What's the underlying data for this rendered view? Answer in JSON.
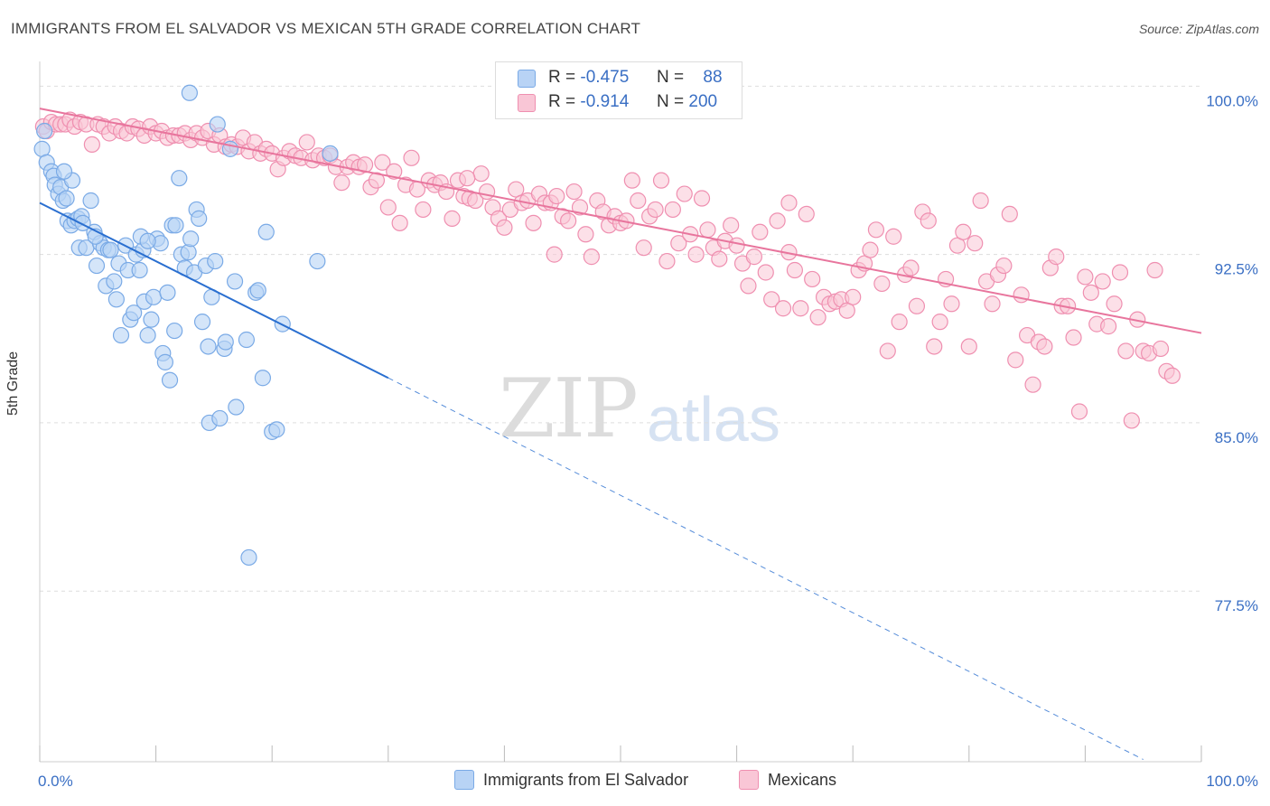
{
  "header": {
    "title": "IMMIGRANTS FROM EL SALVADOR VS MEXICAN 5TH GRADE CORRELATION CHART",
    "source": "Source: ZipAtlas.com"
  },
  "watermark": {
    "zip": "ZIP",
    "atlas": "atlas"
  },
  "legend": {
    "rows": [
      {
        "r_label": "R =",
        "r_value": "-0.475",
        "n_label": "N =",
        "n_value": "88",
        "color": "#6fa8e8"
      },
      {
        "r_label": "R =",
        "r_value": "-0.914",
        "n_label": "N =",
        "n_value": "200",
        "color": "#f4a0bd"
      }
    ]
  },
  "bottom_legend": {
    "items": [
      {
        "label": "Immigrants from El Salvador",
        "color": "#6fa8e8"
      },
      {
        "label": "Mexicans",
        "color": "#f4a0bd"
      }
    ]
  },
  "colors": {
    "blue_fill": "#b8d3f5",
    "blue_stroke": "#7aaae6",
    "blue_line": "#2a6fd0",
    "pink_fill": "#f9c6d6",
    "pink_stroke": "#ef8fb0",
    "pink_line": "#e8759d",
    "tick_label": "#3a6fc4",
    "grid": "#dddddd"
  },
  "chart_data": {
    "type": "scatter",
    "ylabel": "5th Grade",
    "xlabel": "",
    "x_tick_labels": [
      "0.0%",
      "100.0%"
    ],
    "y_tick_labels": [
      "100.0%",
      "92.5%",
      "85.0%",
      "77.5%"
    ],
    "y_ticks": [
      100.0,
      92.5,
      85.0,
      77.5
    ],
    "xlim": [
      0,
      100
    ],
    "ylim": [
      69.9,
      101.1
    ],
    "grid": true,
    "series": [
      {
        "name": "Immigrants from El Salvador",
        "trend": {
          "x": [
            0,
            30
          ],
          "y": [
            94.8,
            87.0
          ],
          "dash_to": [
            95,
            70.0
          ]
        },
        "points": [
          [
            0.2,
            97.2
          ],
          [
            0.4,
            98.0
          ],
          [
            0.6,
            96.6
          ],
          [
            1.0,
            96.2
          ],
          [
            1.2,
            96.0
          ],
          [
            1.3,
            95.6
          ],
          [
            1.6,
            95.2
          ],
          [
            1.8,
            95.5
          ],
          [
            2.0,
            94.9
          ],
          [
            2.3,
            95.0
          ],
          [
            2.8,
            95.8
          ],
          [
            2.4,
            94.0
          ],
          [
            2.7,
            93.8
          ],
          [
            3.0,
            94.0
          ],
          [
            3.3,
            94.1
          ],
          [
            3.6,
            94.2
          ],
          [
            4.4,
            94.9
          ],
          [
            3.4,
            92.8
          ],
          [
            4.0,
            92.8
          ],
          [
            4.7,
            93.5
          ],
          [
            4.9,
            92.0
          ],
          [
            5.2,
            93.0
          ],
          [
            5.5,
            92.8
          ],
          [
            5.7,
            91.1
          ],
          [
            5.9,
            92.7
          ],
          [
            6.1,
            92.7
          ],
          [
            6.4,
            91.3
          ],
          [
            6.8,
            92.1
          ],
          [
            7.0,
            88.9
          ],
          [
            7.4,
            92.9
          ],
          [
            7.6,
            91.8
          ],
          [
            7.8,
            89.6
          ],
          [
            8.1,
            89.9
          ],
          [
            8.3,
            92.5
          ],
          [
            8.6,
            91.8
          ],
          [
            8.9,
            92.7
          ],
          [
            9.0,
            90.4
          ],
          [
            9.3,
            88.9
          ],
          [
            9.6,
            89.6
          ],
          [
            9.8,
            90.6
          ],
          [
            10.1,
            93.2
          ],
          [
            10.4,
            93.0
          ],
          [
            10.6,
            88.1
          ],
          [
            10.8,
            87.7
          ],
          [
            11.0,
            90.8
          ],
          [
            11.2,
            86.9
          ],
          [
            11.4,
            93.8
          ],
          [
            11.7,
            93.8
          ],
          [
            12.0,
            95.9
          ],
          [
            12.2,
            92.5
          ],
          [
            12.5,
            91.9
          ],
          [
            12.8,
            92.6
          ],
          [
            12.9,
            99.7
          ],
          [
            13.0,
            93.2
          ],
          [
            13.3,
            91.7
          ],
          [
            13.5,
            94.5
          ],
          [
            13.7,
            94.1
          ],
          [
            14.0,
            89.5
          ],
          [
            14.3,
            92.0
          ],
          [
            14.6,
            85.0
          ],
          [
            14.8,
            90.6
          ],
          [
            15.1,
            92.2
          ],
          [
            15.3,
            98.3
          ],
          [
            15.5,
            85.2
          ],
          [
            15.9,
            88.3
          ],
          [
            16.0,
            88.6
          ],
          [
            16.4,
            97.2
          ],
          [
            16.8,
            91.3
          ],
          [
            16.9,
            85.7
          ],
          [
            17.8,
            88.7
          ],
          [
            18.6,
            90.8
          ],
          [
            18.8,
            90.9
          ],
          [
            19.2,
            87.0
          ],
          [
            19.5,
            93.5
          ],
          [
            20.0,
            84.6
          ],
          [
            20.4,
            84.7
          ],
          [
            20.9,
            89.4
          ],
          [
            23.9,
            92.2
          ],
          [
            25.0,
            97.0
          ],
          [
            18.0,
            79.0
          ],
          [
            14.5,
            88.4
          ],
          [
            11.6,
            89.1
          ],
          [
            6.6,
            90.5
          ],
          [
            8.7,
            93.3
          ],
          [
            9.3,
            93.1
          ],
          [
            4.8,
            93.3
          ],
          [
            3.7,
            93.9
          ],
          [
            2.1,
            96.2
          ]
        ]
      },
      {
        "name": "Mexicans",
        "trend": {
          "x": [
            0,
            100
          ],
          "y": [
            99.0,
            89.0
          ]
        },
        "points": [
          [
            0.3,
            98.2
          ],
          [
            0.6,
            98.0
          ],
          [
            1.0,
            98.4
          ],
          [
            1.4,
            98.3
          ],
          [
            1.8,
            98.3
          ],
          [
            2.2,
            98.3
          ],
          [
            2.6,
            98.5
          ],
          [
            3.0,
            98.2
          ],
          [
            3.5,
            98.4
          ],
          [
            4.0,
            98.3
          ],
          [
            4.5,
            97.4
          ],
          [
            5.0,
            98.3
          ],
          [
            5.5,
            98.2
          ],
          [
            6.0,
            97.9
          ],
          [
            6.5,
            98.2
          ],
          [
            7.0,
            98.0
          ],
          [
            7.5,
            97.9
          ],
          [
            8.0,
            98.2
          ],
          [
            8.5,
            98.1
          ],
          [
            9.0,
            97.8
          ],
          [
            9.5,
            98.2
          ],
          [
            10.0,
            97.9
          ],
          [
            10.5,
            98.0
          ],
          [
            11.0,
            97.7
          ],
          [
            11.5,
            97.8
          ],
          [
            12.0,
            97.8
          ],
          [
            12.5,
            97.9
          ],
          [
            13.0,
            97.6
          ],
          [
            13.5,
            97.9
          ],
          [
            14.0,
            97.7
          ],
          [
            14.5,
            98.0
          ],
          [
            15.0,
            97.4
          ],
          [
            15.5,
            97.8
          ],
          [
            16.0,
            97.3
          ],
          [
            16.5,
            97.4
          ],
          [
            17.0,
            97.3
          ],
          [
            17.5,
            97.7
          ],
          [
            18.0,
            97.1
          ],
          [
            18.5,
            97.5
          ],
          [
            19.0,
            97.0
          ],
          [
            19.5,
            97.2
          ],
          [
            20.0,
            97.0
          ],
          [
            20.5,
            96.3
          ],
          [
            21.0,
            96.8
          ],
          [
            21.5,
            97.1
          ],
          [
            22.0,
            96.9
          ],
          [
            22.5,
            96.8
          ],
          [
            23.0,
            97.5
          ],
          [
            23.5,
            96.7
          ],
          [
            24.0,
            96.9
          ],
          [
            24.5,
            96.8
          ],
          [
            25.0,
            96.9
          ],
          [
            25.5,
            96.4
          ],
          [
            26.0,
            95.7
          ],
          [
            26.5,
            96.4
          ],
          [
            27.0,
            96.6
          ],
          [
            27.5,
            96.4
          ],
          [
            28.0,
            96.5
          ],
          [
            28.5,
            95.5
          ],
          [
            29.0,
            95.8
          ],
          [
            29.5,
            96.6
          ],
          [
            30.0,
            94.6
          ],
          [
            30.5,
            96.2
          ],
          [
            31.0,
            93.9
          ],
          [
            31.5,
            95.6
          ],
          [
            32.0,
            96.8
          ],
          [
            32.5,
            95.4
          ],
          [
            33.0,
            94.5
          ],
          [
            33.5,
            95.8
          ],
          [
            34.0,
            95.6
          ],
          [
            34.5,
            95.7
          ],
          [
            35.0,
            95.3
          ],
          [
            35.5,
            94.1
          ],
          [
            36.0,
            95.8
          ],
          [
            36.5,
            95.1
          ],
          [
            37.0,
            95.0
          ],
          [
            37.5,
            94.9
          ],
          [
            38.0,
            96.1
          ],
          [
            38.5,
            95.3
          ],
          [
            39.0,
            94.6
          ],
          [
            39.5,
            94.1
          ],
          [
            40.0,
            93.7
          ],
          [
            40.5,
            94.5
          ],
          [
            41.0,
            95.4
          ],
          [
            41.5,
            94.8
          ],
          [
            42.0,
            94.9
          ],
          [
            42.5,
            93.9
          ],
          [
            43.0,
            95.2
          ],
          [
            43.5,
            94.8
          ],
          [
            44.0,
            94.8
          ],
          [
            44.5,
            95.1
          ],
          [
            45.0,
            94.2
          ],
          [
            45.5,
            94.0
          ],
          [
            46.0,
            95.3
          ],
          [
            46.5,
            94.6
          ],
          [
            47.0,
            93.4
          ],
          [
            47.5,
            92.4
          ],
          [
            48.0,
            94.9
          ],
          [
            48.5,
            94.4
          ],
          [
            49.0,
            93.8
          ],
          [
            49.5,
            94.2
          ],
          [
            50.0,
            93.9
          ],
          [
            50.5,
            94.0
          ],
          [
            51.0,
            95.8
          ],
          [
            51.5,
            94.9
          ],
          [
            52.0,
            92.8
          ],
          [
            52.5,
            94.2
          ],
          [
            53.0,
            94.5
          ],
          [
            53.5,
            95.8
          ],
          [
            54.0,
            92.2
          ],
          [
            54.5,
            94.5
          ],
          [
            55.0,
            93.0
          ],
          [
            55.5,
            95.2
          ],
          [
            56.0,
            93.4
          ],
          [
            56.5,
            92.5
          ],
          [
            57.0,
            95.0
          ],
          [
            57.5,
            93.6
          ],
          [
            58.0,
            92.8
          ],
          [
            58.5,
            92.3
          ],
          [
            59.0,
            93.1
          ],
          [
            59.5,
            93.8
          ],
          [
            60.0,
            92.9
          ],
          [
            60.5,
            92.1
          ],
          [
            61.0,
            91.1
          ],
          [
            61.5,
            92.4
          ],
          [
            62.0,
            93.5
          ],
          [
            62.5,
            91.7
          ],
          [
            63.0,
            90.5
          ],
          [
            63.5,
            94.0
          ],
          [
            64.0,
            90.1
          ],
          [
            64.5,
            94.8
          ],
          [
            65.0,
            91.8
          ],
          [
            65.5,
            90.1
          ],
          [
            66.0,
            94.3
          ],
          [
            66.5,
            91.4
          ],
          [
            67.0,
            89.7
          ],
          [
            67.5,
            90.6
          ],
          [
            68.0,
            90.3
          ],
          [
            68.5,
            90.4
          ],
          [
            69.0,
            90.5
          ],
          [
            69.5,
            90.0
          ],
          [
            70.0,
            90.6
          ],
          [
            70.5,
            91.8
          ],
          [
            71.0,
            92.1
          ],
          [
            71.5,
            92.7
          ],
          [
            72.0,
            93.6
          ],
          [
            72.5,
            91.2
          ],
          [
            73.0,
            88.2
          ],
          [
            73.5,
            93.3
          ],
          [
            74.0,
            89.5
          ],
          [
            74.5,
            91.6
          ],
          [
            75.0,
            91.9
          ],
          [
            75.5,
            90.2
          ],
          [
            76.0,
            94.4
          ],
          [
            76.5,
            94.0
          ],
          [
            77.0,
            88.4
          ],
          [
            77.5,
            89.5
          ],
          [
            78.0,
            91.4
          ],
          [
            78.5,
            90.3
          ],
          [
            79.0,
            92.9
          ],
          [
            79.5,
            93.5
          ],
          [
            80.0,
            88.4
          ],
          [
            80.5,
            93.0
          ],
          [
            81.0,
            94.9
          ],
          [
            81.5,
            91.3
          ],
          [
            82.0,
            90.3
          ],
          [
            82.5,
            91.6
          ],
          [
            83.0,
            92.0
          ],
          [
            83.5,
            94.3
          ],
          [
            84.0,
            87.8
          ],
          [
            84.5,
            90.7
          ],
          [
            85.0,
            88.9
          ],
          [
            85.5,
            86.7
          ],
          [
            86.0,
            88.6
          ],
          [
            86.5,
            88.4
          ],
          [
            87.0,
            91.9
          ],
          [
            87.5,
            92.4
          ],
          [
            88.0,
            90.2
          ],
          [
            88.5,
            90.2
          ],
          [
            89.0,
            88.8
          ],
          [
            89.5,
            85.5
          ],
          [
            90.0,
            91.5
          ],
          [
            90.5,
            90.8
          ],
          [
            91.0,
            89.4
          ],
          [
            91.5,
            91.3
          ],
          [
            92.0,
            89.3
          ],
          [
            92.5,
            90.3
          ],
          [
            93.0,
            91.7
          ],
          [
            93.5,
            88.2
          ],
          [
            94.0,
            85.1
          ],
          [
            94.5,
            89.6
          ],
          [
            95.0,
            88.2
          ],
          [
            95.5,
            88.1
          ],
          [
            96.0,
            91.8
          ],
          [
            96.5,
            88.3
          ],
          [
            97.0,
            87.3
          ],
          [
            97.5,
            87.1
          ],
          [
            36.8,
            95.9
          ],
          [
            44.3,
            92.5
          ],
          [
            64.5,
            92.6
          ]
        ]
      }
    ]
  }
}
